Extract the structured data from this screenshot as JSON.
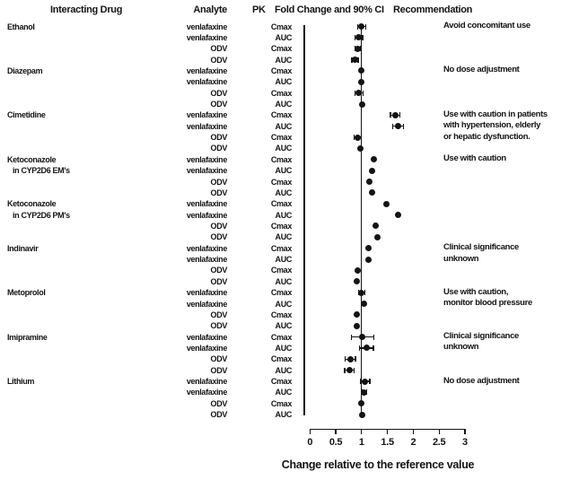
{
  "header": {
    "interacting_drug": "Interacting Drug",
    "analyte": "Analyte",
    "pk": "PK",
    "fold_change": "Fold Change and 90% CI",
    "recommendation": "Recommendation"
  },
  "chart_data": {
    "type": "scatter",
    "subtype": "forest-plot",
    "xlabel": "Change relative to the reference value",
    "xlim": [
      0,
      3
    ],
    "reference_line": 1,
    "x_ticks": [
      {
        "v": 0,
        "label": "0"
      },
      {
        "v": 0.5,
        "label": "0.5"
      },
      {
        "v": 1,
        "label": "1"
      },
      {
        "v": 1.5,
        "label": "1.5"
      },
      {
        "v": 2,
        "label": "2"
      },
      {
        "v": 2.5,
        "label": "2.5"
      },
      {
        "v": 3,
        "label": "3"
      }
    ],
    "marker_color": "#141414",
    "groups": [
      {
        "drug": [
          "Ethanol"
        ],
        "recommendation": [
          "Avoid concomitant use"
        ],
        "rows": [
          {
            "analyte": "venlafaxine",
            "pk": "Cmax",
            "value": 1.0,
            "ci": [
              0.92,
              1.08
            ]
          },
          {
            "analyte": "venlafaxine",
            "pk": "AUC",
            "value": 0.95,
            "ci": [
              0.87,
              1.02
            ]
          },
          {
            "analyte": "ODV",
            "pk": "Cmax",
            "value": 0.92,
            "ci": [
              0.87,
              0.97
            ]
          },
          {
            "analyte": "ODV",
            "pk": "AUC",
            "value": 0.87,
            "ci": [
              0.81,
              0.93
            ]
          }
        ]
      },
      {
        "drug": [
          "Diazepam"
        ],
        "recommendation": [
          "No dose adjustment"
        ],
        "rows": [
          {
            "analyte": "venlafaxine",
            "pk": "Cmax",
            "value": 1.0,
            "ci": null
          },
          {
            "analyte": "venlafaxine",
            "pk": "AUC",
            "value": 1.0,
            "ci": null
          },
          {
            "analyte": "ODV",
            "pk": "Cmax",
            "value": 0.95,
            "ci": [
              0.87,
              1.03
            ]
          },
          {
            "analyte": "ODV",
            "pk": "AUC",
            "value": 1.01,
            "ci": null
          }
        ]
      },
      {
        "drug": [
          "Cimetidine"
        ],
        "recommendation": [
          "Use with caution in patients",
          "with hypertension, elderly",
          "or hepatic dysfunction."
        ],
        "rows": [
          {
            "analyte": "venlafaxine",
            "pk": "Cmax",
            "value": 1.65,
            "ci": [
              1.56,
              1.74
            ]
          },
          {
            "analyte": "venlafaxine",
            "pk": "AUC",
            "value": 1.7,
            "ci": [
              1.6,
              1.81
            ]
          },
          {
            "analyte": "ODV",
            "pk": "Cmax",
            "value": 0.92,
            "ci": [
              0.85,
              0.99
            ]
          },
          {
            "analyte": "ODV",
            "pk": "AUC",
            "value": 0.97,
            "ci": null
          }
        ]
      },
      {
        "drug": [
          "Ketoconazole",
          "in CYP2D6 EM's"
        ],
        "recommendation": [
          "Use with caution"
        ],
        "rows": [
          {
            "analyte": "venlafaxine",
            "pk": "Cmax",
            "value": 1.23,
            "ci": null
          },
          {
            "analyte": "venlafaxine",
            "pk": "AUC",
            "value": 1.21,
            "ci": null
          },
          {
            "analyte": "ODV",
            "pk": "Cmax",
            "value": 1.15,
            "ci": null
          },
          {
            "analyte": "ODV",
            "pk": "AUC",
            "value": 1.21,
            "ci": null
          }
        ]
      },
      {
        "drug": [
          "Ketoconazole",
          "in CYP2D6 PM's"
        ],
        "recommendation": [],
        "rows": [
          {
            "analyte": "venlafaxine",
            "pk": "Cmax",
            "value": 1.48,
            "ci": null
          },
          {
            "analyte": "venlafaxine",
            "pk": "AUC",
            "value": 1.7,
            "ci": null
          },
          {
            "analyte": "ODV",
            "pk": "Cmax",
            "value": 1.28,
            "ci": null
          },
          {
            "analyte": "ODV",
            "pk": "AUC",
            "value": 1.31,
            "ci": null
          }
        ]
      },
      {
        "drug": [
          "Indinavir"
        ],
        "recommendation": [
          "Clinical significance",
          "unknown"
        ],
        "rows": [
          {
            "analyte": "venlafaxine",
            "pk": "Cmax",
            "value": 1.13,
            "ci": null
          },
          {
            "analyte": "venlafaxine",
            "pk": "AUC",
            "value": 1.13,
            "ci": null
          },
          {
            "analyte": "ODV",
            "pk": "Cmax",
            "value": 0.92,
            "ci": null
          },
          {
            "analyte": "ODV",
            "pk": "AUC",
            "value": 0.9,
            "ci": null
          }
        ]
      },
      {
        "drug": [
          "Metoprolol"
        ],
        "recommendation": [
          "Use with caution,",
          "monitor blood pressure"
        ],
        "rows": [
          {
            "analyte": "venlafaxine",
            "pk": "Cmax",
            "value": 1.0,
            "ci": [
              0.94,
              1.06
            ]
          },
          {
            "analyte": "venlafaxine",
            "pk": "AUC",
            "value": 1.05,
            "ci": null
          },
          {
            "analyte": "ODV",
            "pk": "Cmax",
            "value": 0.91,
            "ci": null
          },
          {
            "analyte": "ODV",
            "pk": "AUC",
            "value": 0.9,
            "ci": null
          }
        ]
      },
      {
        "drug": [
          "Imipramine"
        ],
        "recommendation": [
          "Clinical significance",
          "unknown"
        ],
        "rows": [
          {
            "analyte": "venlafaxine",
            "pk": "Cmax",
            "value": 1.01,
            "ci": [
              0.8,
              1.24
            ]
          },
          {
            "analyte": "venlafaxine",
            "pk": "AUC",
            "value": 1.09,
            "ci": [
              0.96,
              1.23
            ]
          },
          {
            "analyte": "ODV",
            "pk": "Cmax",
            "value": 0.78,
            "ci": [
              0.68,
              0.88
            ]
          },
          {
            "analyte": "ODV",
            "pk": "AUC",
            "value": 0.76,
            "ci": [
              0.67,
              0.86
            ]
          }
        ]
      },
      {
        "drug": [
          "Lithium"
        ],
        "recommendation": [
          "No dose adjustment"
        ],
        "rows": [
          {
            "analyte": "venlafaxine",
            "pk": "Cmax",
            "value": 1.07,
            "ci": [
              0.98,
              1.16
            ]
          },
          {
            "analyte": "venlafaxine",
            "pk": "AUC",
            "value": 1.05,
            "ci": [
              1.0,
              1.1
            ]
          },
          {
            "analyte": "ODV",
            "pk": "Cmax",
            "value": 0.99,
            "ci": null
          },
          {
            "analyte": "ODV",
            "pk": "AUC",
            "value": 1.01,
            "ci": null
          }
        ]
      }
    ]
  }
}
